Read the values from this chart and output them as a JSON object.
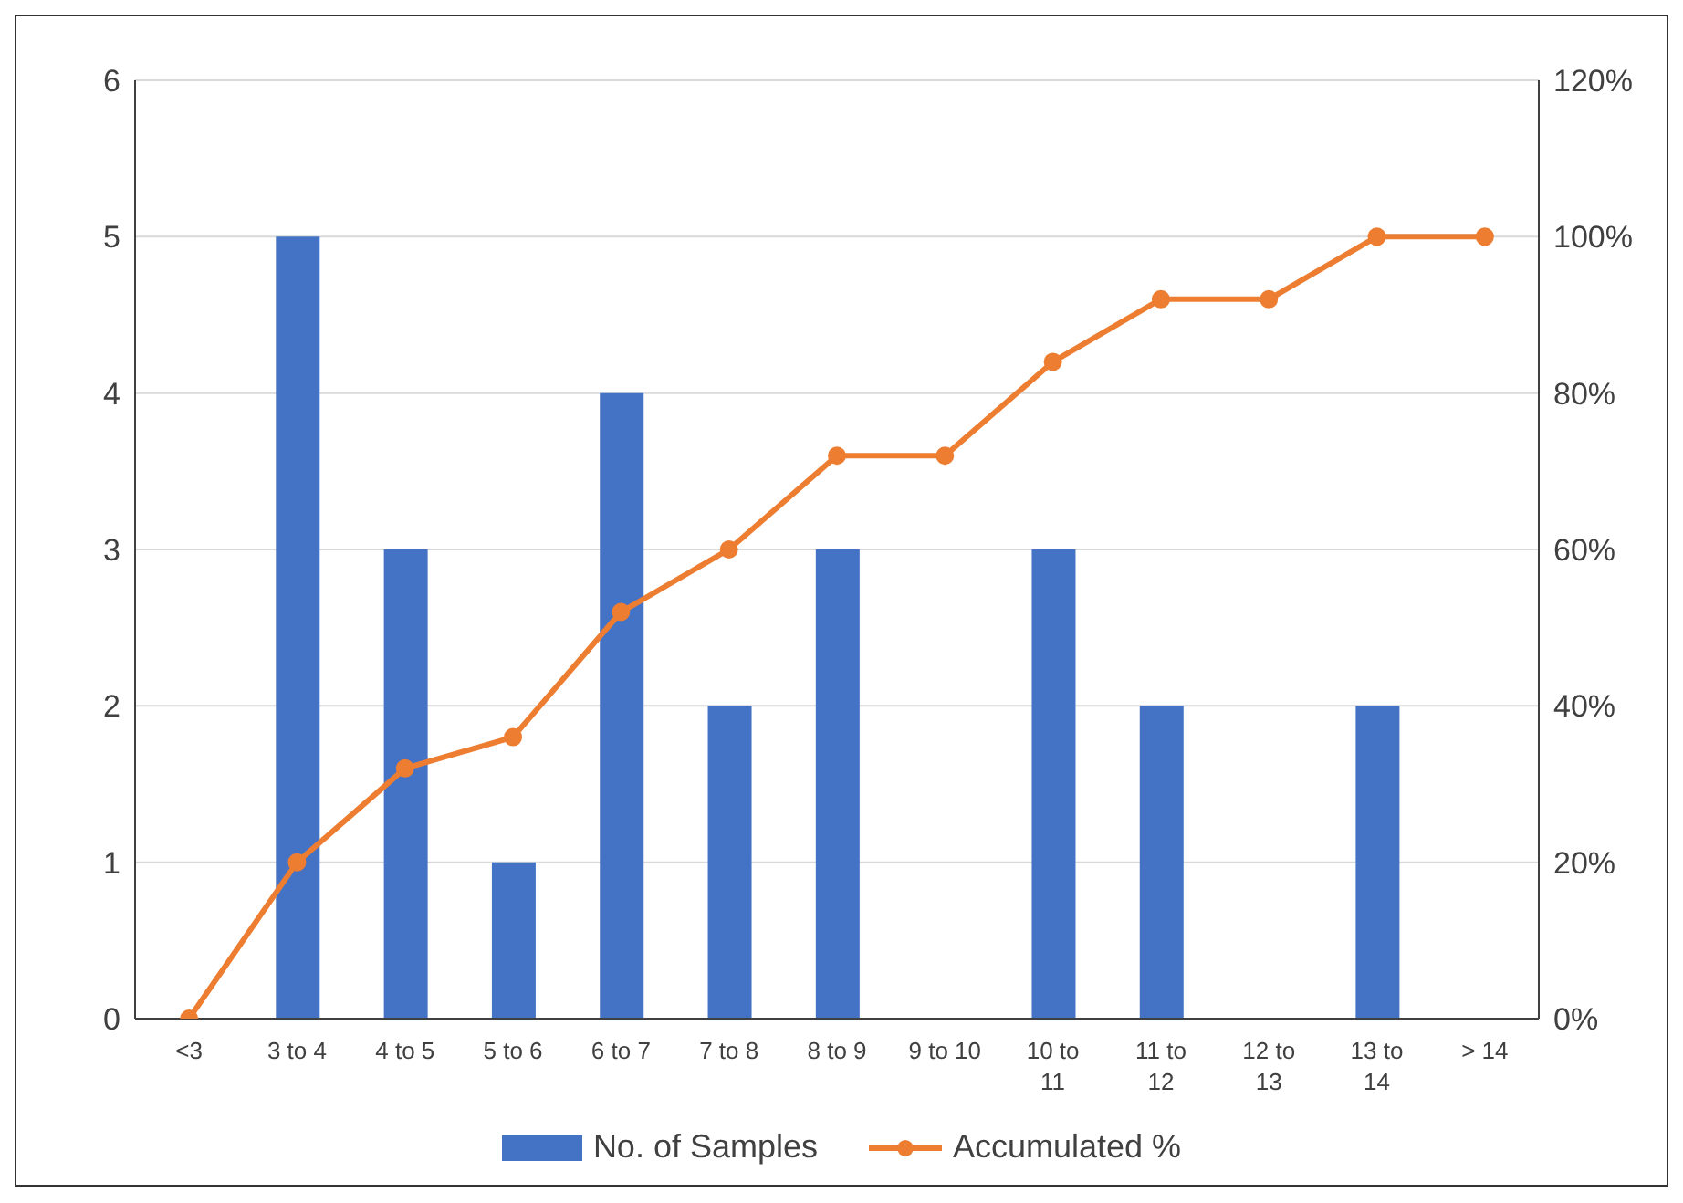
{
  "chart_data": {
    "type": "bar",
    "categories": [
      "<3",
      "3 to 4",
      "4 to 5",
      "5 to 6",
      "6 to 7",
      "7 to 8",
      "8 to 9",
      "9 to 10",
      "10 to 11",
      "11 to 12",
      "12 to 13",
      "13 to 14",
      "> 14"
    ],
    "series": [
      {
        "name": "No. of Samples",
        "color": "#4472c4",
        "values": [
          0,
          5,
          3,
          1,
          4,
          2,
          3,
          0,
          3,
          2,
          0,
          2,
          0
        ]
      },
      {
        "name": "Accumulated %",
        "type": "line",
        "axis": "y2",
        "color": "#ed7d31",
        "marker": "circle",
        "values": [
          0,
          20,
          32,
          36,
          52,
          60,
          72,
          72,
          84,
          92,
          92,
          100,
          100
        ]
      }
    ],
    "ylim": [
      0,
      6
    ],
    "yticks": [
      0,
      1,
      2,
      3,
      4,
      5,
      6
    ],
    "y2lim": [
      0,
      120
    ],
    "y2ticks": [
      {
        "value": 0,
        "label": "0%"
      },
      {
        "value": 20,
        "label": "20%"
      },
      {
        "value": 40,
        "label": "40%"
      },
      {
        "value": 60,
        "label": "60%"
      },
      {
        "value": 80,
        "label": "80%"
      },
      {
        "value": 100,
        "label": "100%"
      },
      {
        "value": 120,
        "label": "120%"
      }
    ],
    "grid": "y",
    "legend": "bottom"
  }
}
